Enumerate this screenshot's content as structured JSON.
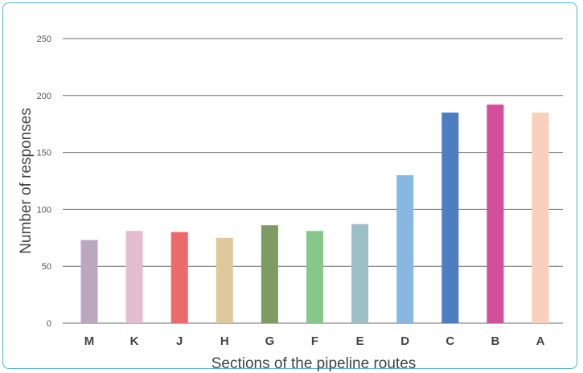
{
  "chart_data": {
    "type": "bar",
    "categories": [
      "M",
      "K",
      "J",
      "H",
      "G",
      "F",
      "E",
      "D",
      "C",
      "B",
      "A"
    ],
    "values": [
      73,
      81,
      80,
      75,
      86,
      81,
      87,
      130,
      185,
      192,
      185
    ],
    "colors": [
      "#bba7c0",
      "#e3bcd0",
      "#ec6a6a",
      "#dfc89c",
      "#7d9b63",
      "#86c88a",
      "#9dbfc6",
      "#88b7e0",
      "#4d7fc0",
      "#d34f9c",
      "#f9cfbd"
    ],
    "xlabel": "Sections of the pipeline routes",
    "ylabel": "Number of responses",
    "ylim": [
      0,
      250
    ],
    "yticks": [
      0,
      50,
      100,
      150,
      200,
      250
    ],
    "grid": true,
    "legend": "none"
  }
}
